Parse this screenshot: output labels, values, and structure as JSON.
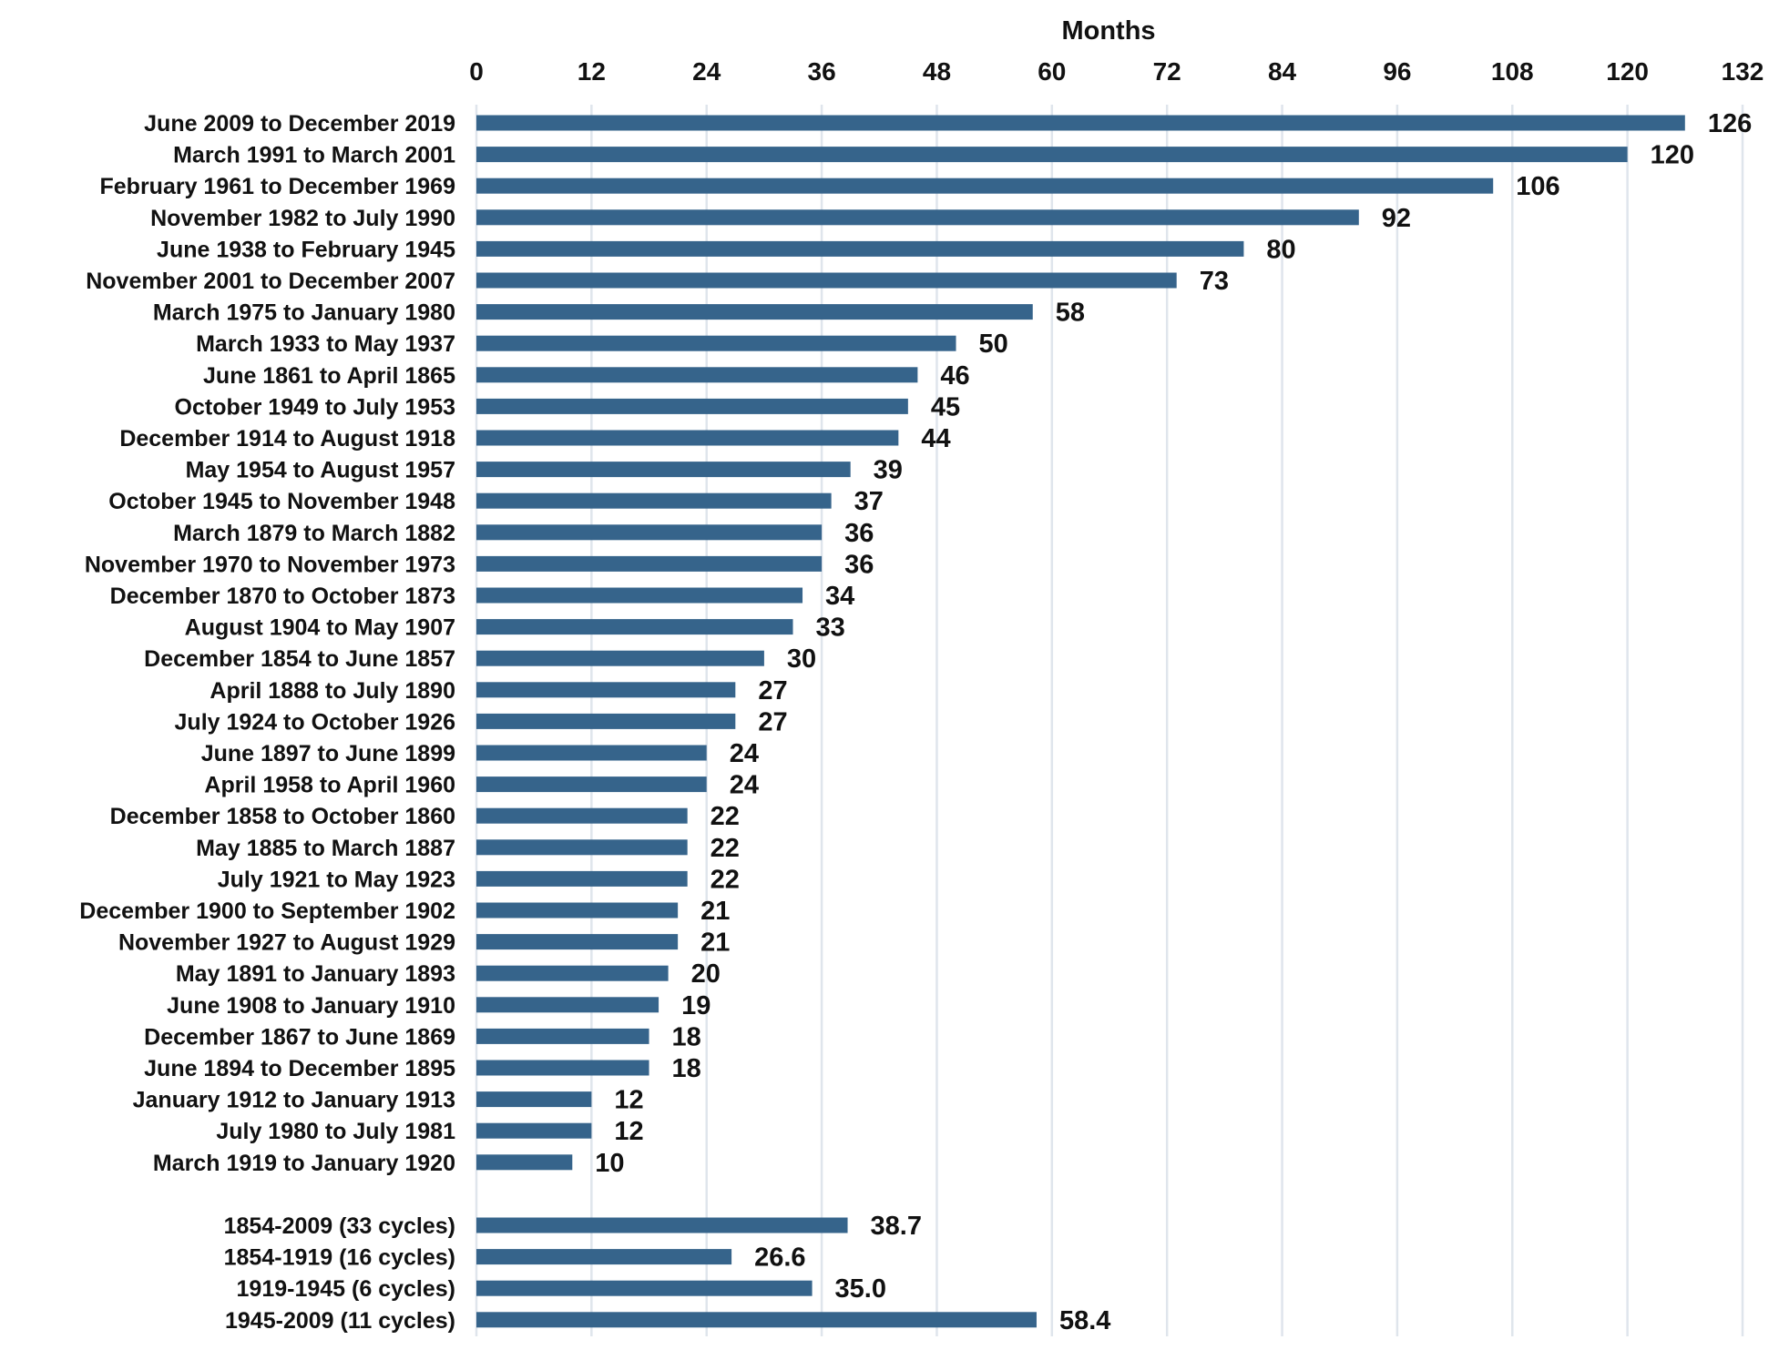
{
  "chart_data": {
    "type": "bar",
    "orientation": "horizontal",
    "xlabel": "Months",
    "xlim": [
      0,
      132
    ],
    "xticks": [
      0,
      12,
      24,
      36,
      48,
      60,
      72,
      84,
      96,
      108,
      120,
      132
    ],
    "grid": "vertical",
    "bar_color": "#36648b",
    "categories": [
      "June 2009 to December 2019",
      "March 1991 to March 2001",
      "February 1961 to December 1969",
      "November 1982 to July 1990",
      "June 1938 to February 1945",
      "November 2001 to December 2007",
      "March 1975 to January 1980",
      "March 1933 to May 1937",
      "June 1861 to April 1865",
      "October 1949 to July 1953",
      "December 1914 to August 1918",
      "May 1954 to August 1957",
      "October 1945 to November 1948",
      "March 1879 to March 1882",
      "November 1970 to November 1973",
      "December 1870 to October 1873",
      "August 1904 to May 1907",
      "December 1854 to June 1857",
      "April 1888 to July 1890",
      "July 1924 to October 1926",
      "June 1897 to June 1899",
      "April 1958 to April 1960",
      "December 1858 to October 1860",
      "May 1885 to March 1887",
      "July 1921 to May 1923",
      "December 1900 to September 1902",
      "November 1927 to August 1929",
      "May 1891 to January 1893",
      "June 1908 to January 1910",
      "December 1867 to June 1869",
      "June 1894 to December 1895",
      "January 1912 to January 1913",
      "July 1980 to July 1981",
      "March 1919 to January 1920"
    ],
    "values": [
      126,
      120,
      106,
      92,
      80,
      73,
      58,
      50,
      46,
      45,
      44,
      39,
      37,
      36,
      36,
      34,
      33,
      30,
      27,
      27,
      24,
      24,
      22,
      22,
      22,
      21,
      21,
      20,
      19,
      18,
      18,
      12,
      12,
      10
    ],
    "value_labels": [
      "126",
      "120",
      "106",
      "92",
      "80",
      "73",
      "58",
      "50",
      "46",
      "45",
      "44",
      "39",
      "37",
      "36",
      "36",
      "34",
      "33",
      "30",
      "27",
      "27",
      "24",
      "24",
      "22",
      "22",
      "22",
      "21",
      "21",
      "20",
      "19",
      "18",
      "18",
      "12",
      "12",
      "10"
    ],
    "averages": {
      "categories": [
        "1854-2009 (33 cycles)",
        "1854-1919 (16 cycles)",
        "1919-1945 (6 cycles)",
        "1945-2009 (11 cycles)"
      ],
      "values": [
        38.7,
        26.6,
        35.0,
        58.4
      ],
      "value_labels": [
        "38.7",
        "26.6",
        "35.0",
        "58.4"
      ]
    }
  }
}
